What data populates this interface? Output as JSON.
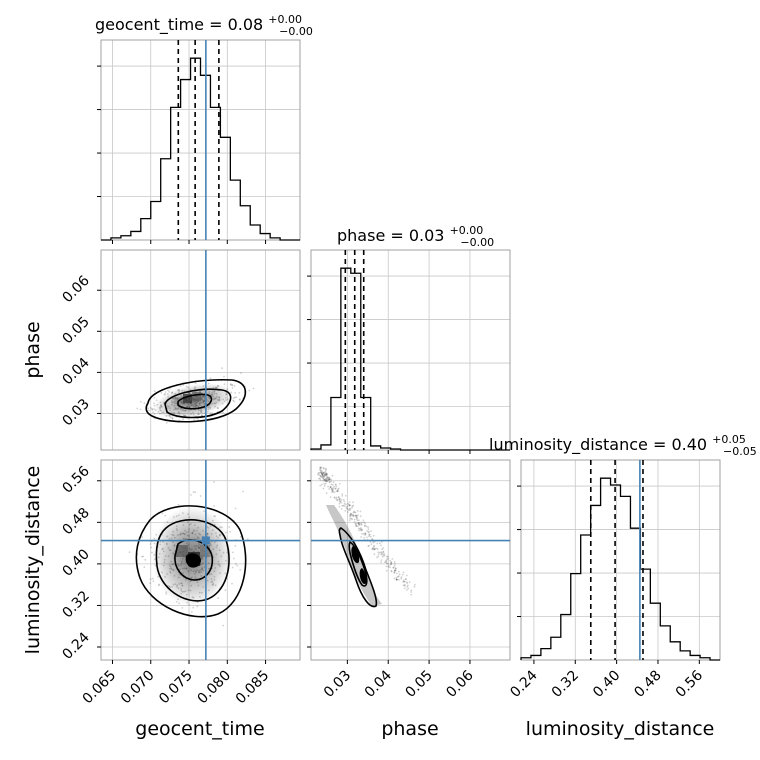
{
  "chart_data": {
    "type": "corner",
    "parameters": [
      {
        "name": "geocent_time",
        "range": [
          0.0635,
          0.0895
        ],
        "ticks": [
          0.065,
          0.07,
          0.075,
          0.08,
          0.085
        ],
        "tick_labels": [
          "0.065",
          "0.070",
          "0.075",
          "0.080",
          "0.085"
        ],
        "truth": 0.0772,
        "quantiles": [
          0.0736,
          0.0758,
          0.0789
        ],
        "title": "geocent_time = 0.08",
        "title_plus": "+0.00",
        "title_minus": "−0.00",
        "xlabel": "geocent_time",
        "hist_edges": [
          0.0635,
          0.0648,
          0.0661,
          0.0674,
          0.0687,
          0.07,
          0.0713,
          0.0726,
          0.0739,
          0.0752,
          0.0765,
          0.0778,
          0.0791,
          0.0804,
          0.0817,
          0.083,
          0.0843,
          0.0856,
          0.0869,
          0.0882,
          0.0895
        ],
        "hist_counts": [
          0,
          1,
          2,
          4,
          10,
          18,
          38,
          62,
          75,
          85,
          77,
          62,
          48,
          28,
          16,
          7,
          3,
          1,
          0,
          0
        ]
      },
      {
        "name": "phase",
        "range": [
          0.0211,
          0.0698
        ],
        "ticks": [
          0.03,
          0.04,
          0.05,
          0.06
        ],
        "tick_labels": [
          "0.03",
          "0.04",
          "0.05",
          "0.06"
        ],
        "truth": null,
        "quantiles": [
          0.0295,
          0.0318,
          0.034
        ],
        "title": "phase = 0.03",
        "title_plus": "+0.00",
        "title_minus": "−0.00",
        "xlabel": "phase",
        "ylabel": "phase",
        "hist_edges": [
          0.0211,
          0.02354,
          0.02597,
          0.02841,
          0.03084,
          0.03328,
          0.03571,
          0.03815,
          0.04058,
          0.04302,
          0.04545,
          0.04789,
          0.05032,
          0.05276,
          0.05519,
          0.05763,
          0.06006,
          0.0625,
          0.06493,
          0.06737,
          0.0698
        ],
        "hist_counts": [
          1,
          5,
          52,
          180,
          175,
          52,
          4,
          2,
          1,
          0,
          0,
          0,
          0,
          0,
          0,
          0,
          0,
          0,
          0,
          0
        ]
      },
      {
        "name": "luminosity_distance",
        "range": [
          0.215,
          0.6
        ],
        "ticks": [
          0.24,
          0.32,
          0.4,
          0.48,
          0.56
        ],
        "tick_labels": [
          "0.24",
          "0.32",
          "0.40",
          "0.48",
          "0.56"
        ],
        "truth": 0.445,
        "quantiles": [
          0.35,
          0.397,
          0.451
        ],
        "title": "luminosity_distance = 0.40",
        "title_plus": "+0.05",
        "title_minus": "−0.05",
        "xlabel": "luminosity_distance",
        "ylabel": "luminosity_distance",
        "hist_edges": [
          0.215,
          0.23425,
          0.2535,
          0.27275,
          0.292,
          0.31125,
          0.3305,
          0.34975,
          0.369,
          0.38825,
          0.4075,
          0.42675,
          0.446,
          0.46525,
          0.4845,
          0.50375,
          0.523,
          0.54225,
          0.5615,
          0.58075,
          0.6
        ],
        "hist_counts": [
          1,
          2,
          5,
          10,
          20,
          38,
          55,
          68,
          80,
          77,
          72,
          58,
          40,
          25,
          15,
          8,
          4,
          2,
          1,
          0
        ]
      }
    ],
    "truth_values": [
      0.0772,
      null,
      0.445
    ],
    "grid": true,
    "colors": {
      "truth": "#4682b4",
      "hist": "#000000",
      "density": "#000000"
    }
  }
}
